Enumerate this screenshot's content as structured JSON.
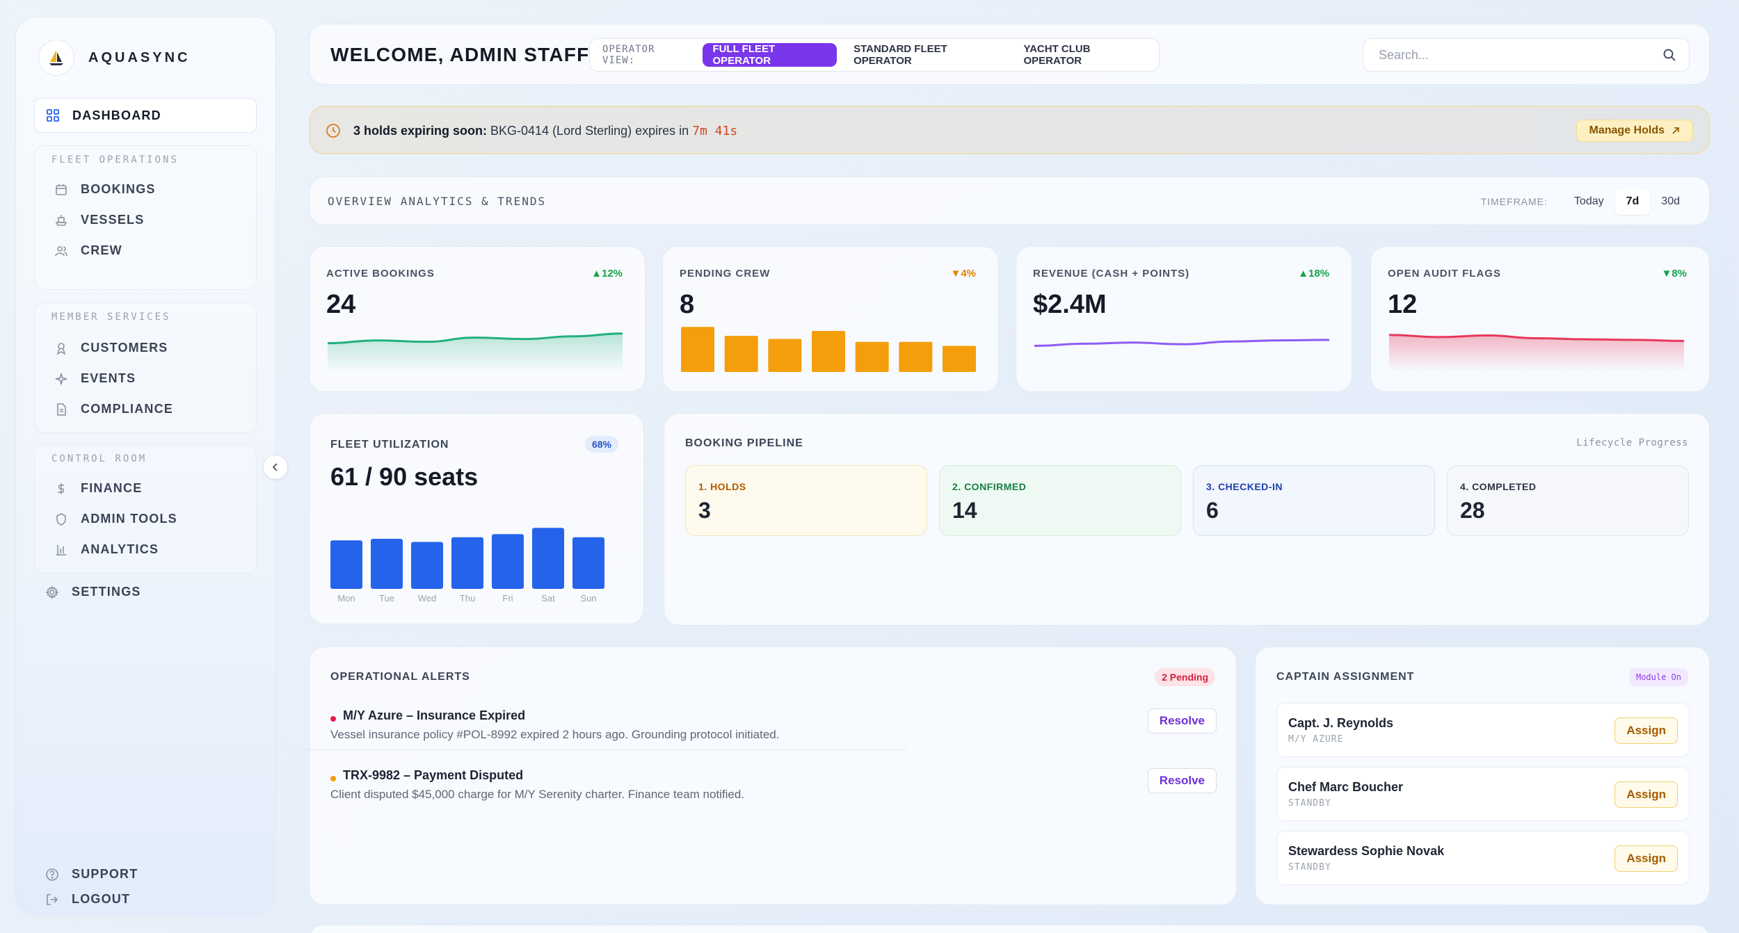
{
  "brand": {
    "name": "AQUASYNC"
  },
  "sidebar": {
    "dashboard": "DASHBOARD",
    "groups": [
      {
        "title": "FLEET OPERATIONS",
        "items": [
          "BOOKINGS",
          "VESSELS",
          "CREW"
        ]
      },
      {
        "title": "MEMBER SERVICES",
        "items": [
          "CUSTOMERS",
          "EVENTS",
          "COMPLIANCE"
        ]
      },
      {
        "title": "CONTROL ROOM",
        "items": [
          "FINANCE",
          "ADMIN TOOLS",
          "ANALYTICS"
        ]
      }
    ],
    "settings": "SETTINGS",
    "support": "SUPPORT",
    "logout": "LOGOUT"
  },
  "header": {
    "welcome": "WELCOME, ADMIN STAFF",
    "operator_view_label": "OPERATOR VIEW:",
    "operator_views": [
      "FULL FLEET OPERATOR",
      "STANDARD FLEET OPERATOR",
      "YACHT CLUB OPERATOR"
    ],
    "active_view": "FULL FLEET OPERATOR",
    "search_placeholder": "Search..."
  },
  "hold_alert": {
    "bold": "3 holds expiring soon:",
    "text": " BKG-0414 (Lord Sterling) expires in ",
    "timer": "7m 41s",
    "button": "Manage Holds"
  },
  "overview": {
    "title": "OVERVIEW ANALYTICS & TRENDS",
    "timeframe_label": "TIMEFRAME:",
    "options": [
      "Today",
      "7d",
      "30d"
    ],
    "selected": "7d"
  },
  "kpis": [
    {
      "label": "ACTIVE BOOKINGS",
      "value": "24",
      "delta": "▲12%",
      "delta_color": "#16a34a",
      "chart": "line",
      "color": "#22b07d",
      "trend": [
        5,
        6,
        5.5,
        7,
        6.5,
        7.5,
        8.5
      ]
    },
    {
      "label": "PENDING CREW",
      "value": "8",
      "delta": "▼4%",
      "delta_color": "#e08600",
      "chart": "bar",
      "color": "#f59e0b",
      "trend": [
        9,
        7.2,
        6.6,
        8.2,
        6,
        6,
        5.2
      ]
    },
    {
      "label": "REVENUE (CASH + POINTS)",
      "value": "$2.4M",
      "delta": "▲18%",
      "delta_color": "#16a34a",
      "chart": "line",
      "color": "#8b5cf6",
      "trend": [
        4,
        4.8,
        5.2,
        4.6,
        5.6,
        6,
        6.2
      ]
    },
    {
      "label": "OPEN AUDIT FLAGS",
      "value": "12",
      "delta": "▼8%",
      "delta_color": "#16a34a",
      "chart": "area",
      "color": "#e8385a",
      "trend": [
        8,
        7.2,
        7.8,
        6.8,
        6.4,
        6.2,
        5.8
      ]
    }
  ],
  "utilization": {
    "label": "FLEET UTILIZATION",
    "badge": "68%",
    "value": "61 / 90 seats",
    "days": [
      "Mon",
      "Tue",
      "Wed",
      "Thu",
      "Fri",
      "Sat",
      "Sun"
    ],
    "values": [
      62,
      64,
      60,
      66,
      70,
      78,
      66
    ],
    "color": "#2563eb"
  },
  "pipeline": {
    "label": "BOOKING PIPELINE",
    "subtitle": "Lifecycle Progress",
    "stages": [
      {
        "label": "1. HOLDS",
        "value": "3",
        "bg": "#fdf9ec",
        "border": "#f1e4bd",
        "color": "#b15a00"
      },
      {
        "label": "2. CONFIRMED",
        "value": "14",
        "bg": "#eef9f3",
        "border": "#cfeedd",
        "color": "#15803d"
      },
      {
        "label": "3. CHECKED-IN",
        "value": "6",
        "bg": "#f2f6fd",
        "border": "#d6e1f2",
        "color": "#1e40af"
      },
      {
        "label": "4. COMPLETED",
        "value": "28",
        "bg": "#f5f7fa",
        "border": "#dfe4eb",
        "color": "#2c3344"
      }
    ]
  },
  "alerts": {
    "label": "OPERATIONAL ALERTS",
    "pending": "2 Pending",
    "items": [
      {
        "title": "M/Y Azure – Insurance Expired",
        "desc": "Vessel insurance policy #POL-8992 expired 2 hours ago. Grounding protocol initiated.",
        "dot": "#e11d48",
        "action": "Resolve"
      },
      {
        "title": "TRX-9982 – Payment Disputed",
        "desc": "Client disputed $45,000 charge for M/Y Serenity charter. Finance team notified.",
        "dot": "#f59e0b",
        "action": "Resolve"
      }
    ]
  },
  "captain": {
    "label": "CAPTAIN ASSIGNMENT",
    "module": "Module On",
    "rows": [
      {
        "name": "Capt. J. Reynolds",
        "status": "M/Y AZURE",
        "action": "Assign"
      },
      {
        "name": "Chef Marc Boucher",
        "status": "STANDBY",
        "action": "Assign"
      },
      {
        "name": "Stewardess Sophie Novak",
        "status": "STANDBY",
        "action": "Assign"
      }
    ]
  }
}
